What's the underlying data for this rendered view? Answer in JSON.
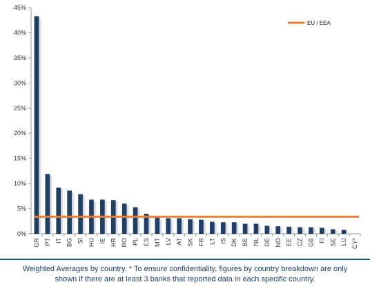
{
  "chart_data": {
    "type": "bar",
    "categories": [
      "GR",
      "PT",
      "IT",
      "BG",
      "SI",
      "HU",
      "IE",
      "HR",
      "RO",
      "PL",
      "ES",
      "MT",
      "LV",
      "AT",
      "SK",
      "FR",
      "LT",
      "IS",
      "DK",
      "BE",
      "NL",
      "DE",
      "NO",
      "EE",
      "CZ",
      "GB",
      "FI",
      "SE",
      "LU",
      "CY*"
    ],
    "values": [
      43.3,
      11.9,
      9.2,
      8.6,
      7.9,
      6.8,
      6.8,
      6.7,
      6.0,
      5.3,
      4.0,
      3.2,
      3.1,
      3.1,
      2.9,
      2.8,
      2.4,
      2.3,
      2.3,
      2.0,
      2.0,
      1.6,
      1.5,
      1.4,
      1.3,
      1.3,
      1.2,
      0.9,
      0.8,
      null
    ],
    "reference_line": {
      "name": "EU / EEA",
      "value": 3.4,
      "color": "#ed7d31"
    },
    "y_ticks": [
      "0%",
      "5%",
      "10%",
      "15%",
      "20%",
      "25%",
      "30%",
      "35%",
      "40%",
      "45%"
    ],
    "ylim": [
      0,
      45
    ],
    "title": "",
    "xlabel": "",
    "ylabel": "",
    "legend_position": "top-right",
    "bar_color": "#1f3f66",
    "grid": false
  },
  "caption": {
    "line1": "Weighted Averages by country. * To ensure confidentiality, figures by country breakdown are only",
    "line2": "shown if there are at least 3 banks that reported data in each specific country."
  }
}
